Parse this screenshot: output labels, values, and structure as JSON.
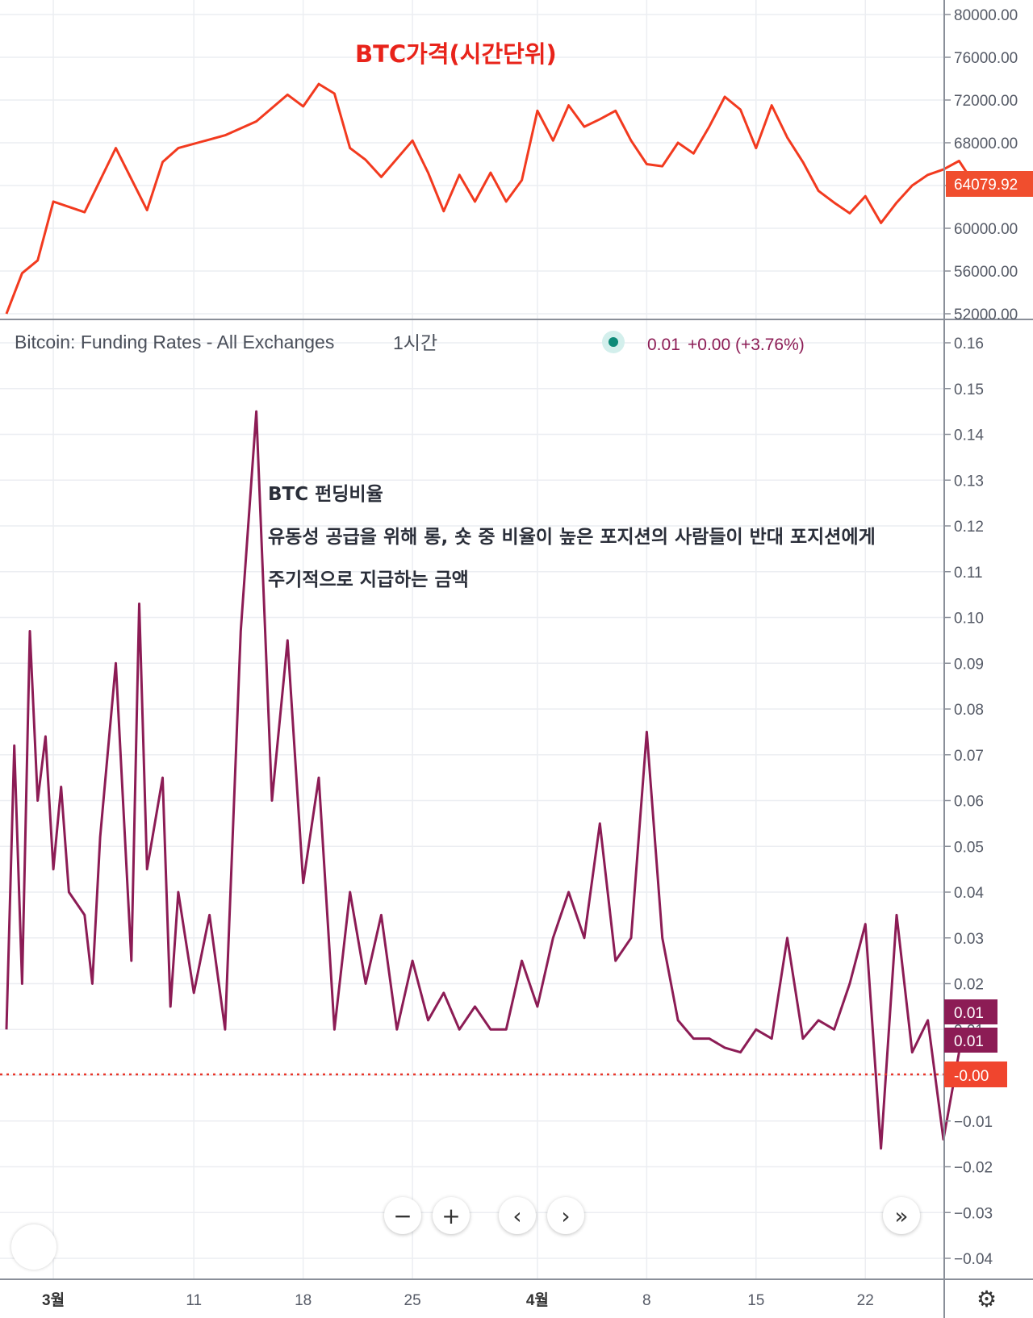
{
  "price_pane": {
    "annotation": "BTC가격(시간단위)",
    "last_price_badge": "64079.92",
    "colors": {
      "line": "#f23a1f",
      "badge": "#f04e2e"
    }
  },
  "funding_pane": {
    "legend": {
      "title": "Bitcoin: Funding Rates - All Exchanges",
      "interval": "1시간",
      "value": "0.01",
      "change": "+0.00 (+3.76%)"
    },
    "annotation_lines": [
      "BTC 펀딩비율",
      "유동성 공급을 위해 롱, 숏 중 비율이 높은 포지션의 사람들이 반대 포지션에게",
      "주기적으로 지급하는 금액"
    ],
    "badges": [
      "0.01",
      "0.01",
      "-0.00"
    ],
    "colors": {
      "line": "#8c1c55",
      "zero_line": "#e8372a",
      "badge": "#8c1c55",
      "zero_badge": "#f0452e"
    }
  },
  "chart_data": [
    {
      "type": "line",
      "name": "BTC",
      "x_ticks": [
        "3월",
        "11",
        "18",
        "25",
        "4월",
        "8",
        "15",
        "22"
      ],
      "y_ticks": [
        "80000.00",
        "76000.00",
        "72000.00",
        "68000.00",
        "64000.00",
        "60000.00",
        "56000.00",
        "52000.00"
      ],
      "ylim": [
        52000,
        80000
      ],
      "grid": true,
      "x": [
        0,
        1,
        2,
        3,
        5,
        7,
        9,
        10,
        11,
        14,
        16,
        18,
        19,
        20,
        21,
        22,
        23,
        24,
        26,
        27,
        28,
        29,
        30,
        31,
        32,
        33,
        34,
        35,
        36,
        37,
        38,
        39,
        40,
        41,
        42,
        43,
        44,
        45,
        46,
        47,
        48,
        49,
        50,
        51,
        52,
        53,
        54,
        55,
        56,
        57,
        58,
        59,
        60,
        61,
        62
      ],
      "y": [
        52000,
        55800,
        57000,
        62500,
        61500,
        67500,
        61700,
        66200,
        67500,
        68700,
        70000,
        72500,
        71400,
        73500,
        72600,
        67500,
        66400,
        64800,
        68200,
        65200,
        61600,
        65000,
        62500,
        65200,
        62500,
        64500,
        71000,
        68200,
        71500,
        69500,
        70200,
        71000,
        68200,
        66000,
        65800,
        68000,
        67000,
        69500,
        72300,
        71100,
        67500,
        71500,
        68500,
        66200,
        63500,
        62400,
        61400,
        63000,
        60500,
        62400,
        64000,
        65000,
        65500,
        66300,
        64080
      ]
    },
    {
      "type": "line",
      "name": "Bitcoin: Funding Rates - All Exchanges",
      "x_ticks": [
        "3월",
        "11",
        "18",
        "25",
        "4월",
        "8",
        "15",
        "22"
      ],
      "y_ticks": [
        "0.16",
        "0.15",
        "0.14",
        "0.13",
        "0.12",
        "0.11",
        "0.10",
        "0.09",
        "0.08",
        "0.07",
        "0.06",
        "0.05",
        "0.04",
        "0.03",
        "0.02",
        "0.01",
        "0.00",
        "−0.01",
        "−0.02",
        "−0.03",
        "−0.04"
      ],
      "ylim": [
        -0.04,
        0.16
      ],
      "grid": true,
      "x": [
        0,
        0.5,
        1,
        1.5,
        2,
        2.5,
        3,
        3.5,
        4,
        5,
        5.5,
        6,
        7,
        8,
        8.5,
        9,
        10,
        10.5,
        11,
        12,
        13,
        14,
        15,
        16,
        17,
        18,
        19,
        20,
        21,
        22,
        23,
        24,
        25,
        26,
        27,
        28,
        29,
        30,
        31,
        32,
        33,
        34,
        35,
        36,
        37,
        38,
        39,
        40,
        41,
        42,
        43,
        44,
        45,
        46,
        47,
        48,
        49,
        50,
        51,
        52,
        53,
        54,
        55,
        56,
        57,
        58,
        59,
        60,
        61,
        62
      ],
      "y": [
        0.01,
        0.072,
        0.02,
        0.097,
        0.06,
        0.074,
        0.045,
        0.063,
        0.04,
        0.035,
        0.02,
        0.052,
        0.09,
        0.025,
        0.103,
        0.045,
        0.065,
        0.015,
        0.04,
        0.018,
        0.035,
        0.01,
        0.097,
        0.145,
        0.06,
        0.095,
        0.042,
        0.065,
        0.01,
        0.04,
        0.02,
        0.035,
        0.01,
        0.025,
        0.012,
        0.018,
        0.01,
        0.015,
        0.01,
        0.01,
        0.025,
        0.015,
        0.03,
        0.04,
        0.03,
        0.055,
        0.025,
        0.03,
        0.075,
        0.03,
        0.012,
        0.008,
        0.008,
        0.006,
        0.005,
        0.01,
        0.008,
        0.03,
        0.008,
        0.012,
        0.01,
        0.02,
        0.033,
        -0.016,
        0.035,
        0.005,
        0.012,
        -0.014,
        0.005,
        0.01
      ]
    }
  ]
}
